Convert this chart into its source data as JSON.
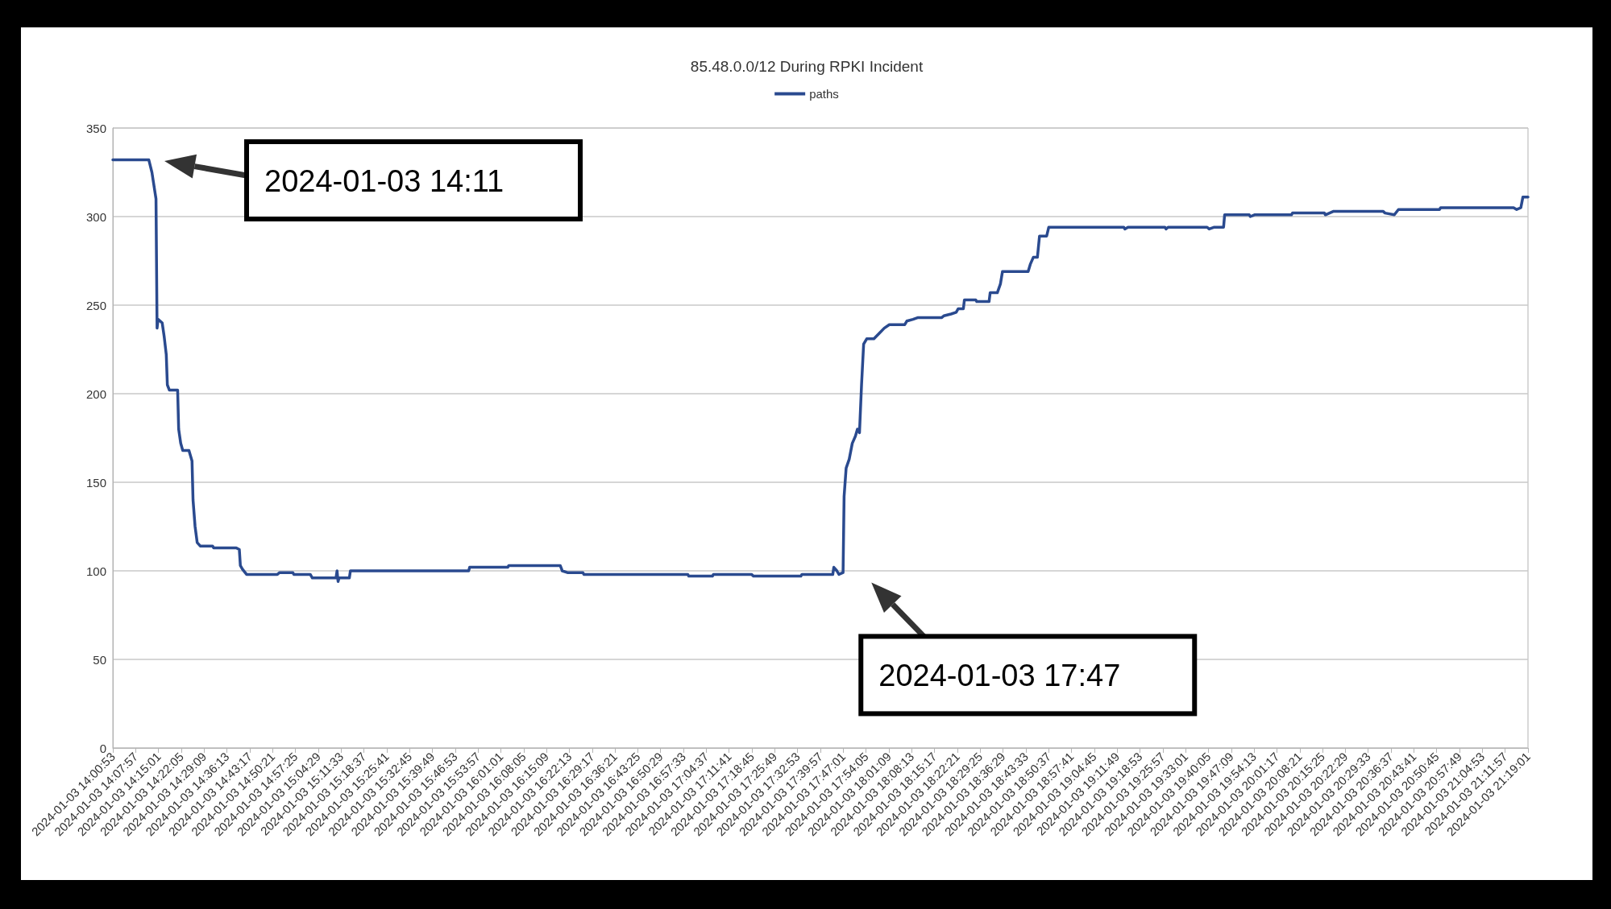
{
  "chart_data": {
    "type": "line",
    "title": "85.48.0.0/12 During RPKI Incident",
    "x": [
      "2024-01-03T14:00:53",
      "2024-01-03T14:12:02",
      "2024-01-03T14:12:59",
      "2024-01-03T14:14:15",
      "2024-01-03T14:14:35",
      "2024-01-03T14:14:54",
      "2024-01-03T14:16:10",
      "2024-01-03T14:16:48",
      "2024-01-03T14:17:26",
      "2024-01-03T14:17:46",
      "2024-01-03T14:18:24",
      "2024-01-03T14:20:57",
      "2024-01-03T14:21:16",
      "2024-01-03T14:21:54",
      "2024-01-03T14:22:32",
      "2024-01-03T14:24:27",
      "2024-01-03T14:25:24",
      "2024-01-03T14:25:43",
      "2024-01-03T14:26:21",
      "2024-01-03T14:27:00",
      "2024-01-03T14:27:57",
      "2024-01-03T14:31:46",
      "2024-01-03T14:32:05",
      "2024-01-03T14:39:06",
      "2024-01-03T14:40:03",
      "2024-01-03T14:40:22",
      "2024-01-03T14:41:00",
      "2024-01-03T14:42:17",
      "2024-01-03T14:51:50",
      "2024-01-03T14:52:28",
      "2024-01-03T14:56:36",
      "2024-01-03T14:56:55",
      "2024-01-03T15:02:01",
      "2024-01-03T15:02:39",
      "2024-01-03T15:09:59",
      "2024-01-03T15:10:18",
      "2024-01-03T15:10:37",
      "2024-01-03T15:10:56",
      "2024-01-03T15:14:07",
      "2024-01-03T15:14:26",
      "2024-01-03T15:51:03",
      "2024-01-03T15:51:22",
      "2024-01-03T16:03:09",
      "2024-01-03T16:03:28",
      "2024-01-03T16:19:24",
      "2024-01-03T16:20:02",
      "2024-01-03T16:21:37",
      "2024-01-03T16:26:24",
      "2024-01-03T16:26:43",
      "2024-01-03T16:58:53",
      "2024-01-03T16:59:12",
      "2024-01-03T17:06:31",
      "2024-01-03T17:06:50",
      "2024-01-03T17:18:37",
      "2024-01-03T17:19:15",
      "2024-01-03T17:33:54",
      "2024-01-03T17:34:13",
      "2024-01-03T17:43:47",
      "2024-01-03T17:44:06",
      "2024-01-03T17:45:03",
      "2024-01-03T17:45:41",
      "2024-01-03T17:46:58",
      "2024-01-03T17:47:17",
      "2024-01-03T17:47:55",
      "2024-01-03T17:48:52",
      "2024-01-03T17:49:49",
      "2024-01-03T17:50:47",
      "2024-01-03T17:51:25",
      "2024-01-03T17:52:03",
      "2024-01-03T17:52:41",
      "2024-01-03T17:53:20",
      "2024-01-03T17:54:17",
      "2024-01-03T17:56:31",
      "2024-01-03T17:58:06",
      "2024-01-03T17:59:42",
      "2024-01-03T18:01:17",
      "2024-01-03T18:06:04",
      "2024-01-03T18:06:42",
      "2024-01-03T18:08:37",
      "2024-01-03T18:10:12",
      "2024-01-03T18:17:32",
      "2024-01-03T18:18:10",
      "2024-01-03T18:20:24",
      "2024-01-03T18:21:59",
      "2024-01-03T18:22:37",
      "2024-01-03T18:24:13",
      "2024-01-03T18:24:32",
      "2024-01-03T18:28:02",
      "2024-01-03T18:28:21",
      "2024-01-03T18:32:10",
      "2024-01-03T18:32:30",
      "2024-01-03T18:34:43",
      "2024-01-03T18:35:41",
      "2024-01-03T18:36:19",
      "2024-01-03T18:44:16",
      "2024-01-03T18:44:55",
      "2024-01-03T18:45:52",
      "2024-01-03T18:47:08",
      "2024-01-03T18:47:47",
      "2024-01-03T18:50:00",
      "2024-01-03T18:50:39",
      "2024-01-03T19:13:53",
      "2024-01-03T19:14:12",
      "2024-01-03T19:15:10",
      "2024-01-03T19:26:37",
      "2024-01-03T19:26:57",
      "2024-01-03T19:27:35",
      "2024-01-03T19:39:41",
      "2024-01-03T19:40:19",
      "2024-01-03T19:41:54",
      "2024-01-03T19:44:46",
      "2024-01-03T19:45:06",
      "2024-01-03T19:52:44",
      "2024-01-03T19:53:03",
      "2024-01-03T19:54:20",
      "2024-01-03T20:05:47",
      "2024-01-03T20:06:06",
      "2024-01-03T20:15:59",
      "2024-01-03T20:16:18",
      "2024-01-03T20:17:34",
      "2024-01-03T20:18:51",
      "2024-01-03T20:34:08",
      "2024-01-03T20:34:46",
      "2024-01-03T20:37:38",
      "2024-01-03T20:38:54",
      "2024-01-03T20:51:38",
      "2024-01-03T20:51:58",
      "2024-01-03T21:14:34",
      "2024-01-03T21:15:31",
      "2024-01-03T21:16:48",
      "2024-01-03T21:17:26",
      "2024-01-03T21:19:01"
    ],
    "series": [
      {
        "name": "paths",
        "color": "#2a4a8f",
        "values": [
          332,
          332,
          325,
          310,
          237,
          242,
          240,
          232,
          222,
          205,
          202,
          202,
          180,
          172,
          168,
          168,
          162,
          140,
          125,
          116,
          114,
          114,
          113,
          113,
          112,
          103,
          101,
          98,
          98,
          99,
          99,
          98,
          98,
          96,
          96,
          100,
          94,
          96,
          96,
          100,
          100,
          102,
          102,
          103,
          103,
          100,
          99,
          99,
          98,
          98,
          97,
          97,
          98,
          98,
          97,
          97,
          98,
          98,
          102,
          100,
          98,
          99,
          142,
          158,
          163,
          172,
          176,
          180,
          178,
          205,
          228,
          231,
          231,
          234,
          237,
          239,
          239,
          241,
          242,
          243,
          243,
          244,
          245,
          246,
          248,
          248,
          253,
          253,
          252,
          252,
          257,
          257,
          262,
          269,
          269,
          273,
          277,
          277,
          289,
          289,
          294,
          294,
          293,
          294,
          294,
          293,
          294,
          294,
          293,
          294,
          294,
          301,
          301,
          300,
          301,
          301,
          302,
          302,
          301,
          302,
          303,
          303,
          302,
          301,
          304,
          304,
          305,
          305,
          304,
          305,
          311,
          311
        ]
      }
    ],
    "xlim": [
      "2024-01-03T14:00:53",
      "2024-01-03T21:19:01"
    ],
    "xticks": [
      {
        "value": "2024-01-03T14:00:53",
        "label": "2024-01-03 14:00:53"
      },
      {
        "value": "2024-01-03T14:07:57",
        "label": "2024-01-03 14:07:57"
      },
      {
        "value": "2024-01-03T14:15:01",
        "label": "2024-01-03 14:15:01"
      },
      {
        "value": "2024-01-03T14:22:05",
        "label": "2024-01-03 14:22:05"
      },
      {
        "value": "2024-01-03T14:29:09",
        "label": "2024-01-03 14:29:09"
      },
      {
        "value": "2024-01-03T14:36:13",
        "label": "2024-01-03 14:36:13"
      },
      {
        "value": "2024-01-03T14:43:17",
        "label": "2024-01-03 14:43:17"
      },
      {
        "value": "2024-01-03T14:50:21",
        "label": "2024-01-03 14:50:21"
      },
      {
        "value": "2024-01-03T14:57:25",
        "label": "2024-01-03 14:57:25"
      },
      {
        "value": "2024-01-03T15:04:29",
        "label": "2024-01-03 15:04:29"
      },
      {
        "value": "2024-01-03T15:11:33",
        "label": "2024-01-03 15:11:33"
      },
      {
        "value": "2024-01-03T15:18:37",
        "label": "2024-01-03 15:18:37"
      },
      {
        "value": "2024-01-03T15:25:41",
        "label": "2024-01-03 15:25:41"
      },
      {
        "value": "2024-01-03T15:32:45",
        "label": "2024-01-03 15:32:45"
      },
      {
        "value": "2024-01-03T15:39:49",
        "label": "2024-01-03 15:39:49"
      },
      {
        "value": "2024-01-03T15:46:53",
        "label": "2024-01-03 15:46:53"
      },
      {
        "value": "2024-01-03T15:53:57",
        "label": "2024-01-03 15:53:57"
      },
      {
        "value": "2024-01-03T16:01:01",
        "label": "2024-01-03 16:01:01"
      },
      {
        "value": "2024-01-03T16:08:05",
        "label": "2024-01-03 16:08:05"
      },
      {
        "value": "2024-01-03T16:15:09",
        "label": "2024-01-03 16:15:09"
      },
      {
        "value": "2024-01-03T16:22:13",
        "label": "2024-01-03 16:22:13"
      },
      {
        "value": "2024-01-03T16:29:17",
        "label": "2024-01-03 16:29:17"
      },
      {
        "value": "2024-01-03T16:36:21",
        "label": "2024-01-03 16:36:21"
      },
      {
        "value": "2024-01-03T16:43:25",
        "label": "2024-01-03 16:43:25"
      },
      {
        "value": "2024-01-03T16:50:29",
        "label": "2024-01-03 16:50:29"
      },
      {
        "value": "2024-01-03T16:57:33",
        "label": "2024-01-03 16:57:33"
      },
      {
        "value": "2024-01-03T17:04:37",
        "label": "2024-01-03 17:04:37"
      },
      {
        "value": "2024-01-03T17:11:41",
        "label": "2024-01-03 17:11:41"
      },
      {
        "value": "2024-01-03T17:18:45",
        "label": "2024-01-03 17:18:45"
      },
      {
        "value": "2024-01-03T17:25:49",
        "label": "2024-01-03 17:25:49"
      },
      {
        "value": "2024-01-03T17:32:53",
        "label": "2024-01-03 17:32:53"
      },
      {
        "value": "2024-01-03T17:39:57",
        "label": "2024-01-03 17:39:57"
      },
      {
        "value": "2024-01-03T17:47:01",
        "label": "2024-01-03 17:47:01"
      },
      {
        "value": "2024-01-03T17:54:05",
        "label": "2024-01-03 17:54:05"
      },
      {
        "value": "2024-01-03T18:01:09",
        "label": "2024-01-03 18:01:09"
      },
      {
        "value": "2024-01-03T18:08:13",
        "label": "2024-01-03 18:08:13"
      },
      {
        "value": "2024-01-03T18:15:17",
        "label": "2024-01-03 18:15:17"
      },
      {
        "value": "2024-01-03T18:22:21",
        "label": "2024-01-03 18:22:21"
      },
      {
        "value": "2024-01-03T18:29:25",
        "label": "2024-01-03 18:29:25"
      },
      {
        "value": "2024-01-03T18:36:29",
        "label": "2024-01-03 18:36:29"
      },
      {
        "value": "2024-01-03T18:43:33",
        "label": "2024-01-03 18:43:33"
      },
      {
        "value": "2024-01-03T18:50:37",
        "label": "2024-01-03 18:50:37"
      },
      {
        "value": "2024-01-03T18:57:41",
        "label": "2024-01-03 18:57:41"
      },
      {
        "value": "2024-01-03T19:04:45",
        "label": "2024-01-03 19:04:45"
      },
      {
        "value": "2024-01-03T19:11:49",
        "label": "2024-01-03 19:11:49"
      },
      {
        "value": "2024-01-03T19:18:53",
        "label": "2024-01-03 19:18:53"
      },
      {
        "value": "2024-01-03T19:25:57",
        "label": "2024-01-03 19:25:57"
      },
      {
        "value": "2024-01-03T19:33:01",
        "label": "2024-01-03 19:33:01"
      },
      {
        "value": "2024-01-03T19:40:05",
        "label": "2024-01-03 19:40:05"
      },
      {
        "value": "2024-01-03T19:47:09",
        "label": "2024-01-03 19:47:09"
      },
      {
        "value": "2024-01-03T19:54:13",
        "label": "2024-01-03 19:54:13"
      },
      {
        "value": "2024-01-03T20:01:17",
        "label": "2024-01-03 20:01:17"
      },
      {
        "value": "2024-01-03T20:08:21",
        "label": "2024-01-03 20:08:21"
      },
      {
        "value": "2024-01-03T20:15:25",
        "label": "2024-01-03 20:15:25"
      },
      {
        "value": "2024-01-03T20:22:29",
        "label": "2024-01-03 20:22:29"
      },
      {
        "value": "2024-01-03T20:29:33",
        "label": "2024-01-03 20:29:33"
      },
      {
        "value": "2024-01-03T20:36:37",
        "label": "2024-01-03 20:36:37"
      },
      {
        "value": "2024-01-03T20:43:41",
        "label": "2024-01-03 20:43:41"
      },
      {
        "value": "2024-01-03T20:50:45",
        "label": "2024-01-03 20:50:45"
      },
      {
        "value": "2024-01-03T20:57:49",
        "label": "2024-01-03 20:57:49"
      },
      {
        "value": "2024-01-03T21:04:53",
        "label": "2024-01-03 21:04:53"
      },
      {
        "value": "2024-01-03T21:11:57",
        "label": "2024-01-03 21:11:57"
      },
      {
        "value": "2024-01-03T21:19:01",
        "label": "2024-01-03 21:19:01"
      }
    ],
    "ylim": [
      0,
      350
    ],
    "yticks": [
      0,
      50,
      100,
      150,
      200,
      250,
      300,
      350
    ],
    "grid": "y",
    "legend": "top",
    "marker": "none",
    "line_style": "solid",
    "annotations": [
      "2024-01-03 14:11",
      {
        "text": "2024-01-03 17:47",
        "x": "2024-01-03T17:47",
        "y": 98
      }
    ]
  }
}
